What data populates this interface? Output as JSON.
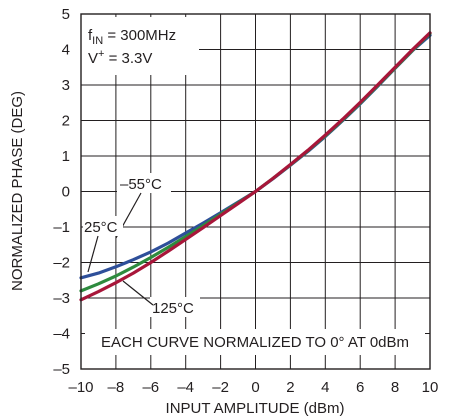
{
  "chart_data": {
    "type": "line",
    "xlabel": "INPUT AMPLITUDE (dBm)",
    "ylabel": "NORMALIZED PHASE (DEG)",
    "xlim": [
      -10,
      10
    ],
    "ylim": [
      -5,
      5
    ],
    "xticks": [
      -10,
      -8,
      -6,
      -4,
      -2,
      0,
      2,
      4,
      6,
      8,
      10
    ],
    "xtick_labels": [
      "–10",
      "–8",
      "–6",
      "–4",
      "–2",
      "0",
      "2",
      "4",
      "6",
      "8",
      "10"
    ],
    "yticks": [
      -5,
      -4,
      -3,
      -2,
      -1,
      0,
      1,
      2,
      3,
      4,
      5
    ],
    "ytick_labels": [
      "–5",
      "–4",
      "–3",
      "–2",
      "–1",
      "0",
      "1",
      "2",
      "3",
      "4",
      "5"
    ],
    "grid": true,
    "conditions": {
      "fin_prefix": "f",
      "fin_sub": "IN",
      "fin_value": " = 300MHz",
      "vplus_prefix": "V",
      "vplus_sup": "+",
      "vplus_value": " = 3.3V"
    },
    "note": "EACH CURVE NORMALIZED TO 0° AT 0dBm",
    "series": [
      {
        "name": "–55°C",
        "color": "#2e4f9a",
        "x": [
          -10,
          -9,
          -8,
          -7,
          -6,
          -5,
          -4,
          -3,
          -2,
          -1,
          0,
          1,
          2,
          3,
          4,
          5,
          6,
          7,
          8,
          9,
          10
        ],
        "y": [
          -2.43,
          -2.3,
          -2.12,
          -1.92,
          -1.7,
          -1.45,
          -1.17,
          -0.89,
          -0.6,
          -0.3,
          0,
          0.36,
          0.74,
          1.13,
          1.55,
          2.0,
          2.47,
          2.96,
          3.47,
          3.97,
          4.4
        ]
      },
      {
        "name": "25°C",
        "color": "#2e8b3e",
        "x": [
          -10,
          -9,
          -8,
          -7,
          -6,
          -5,
          -4,
          -3,
          -2,
          -1,
          0,
          1,
          2,
          3,
          4,
          5,
          6,
          7,
          8,
          9,
          10
        ],
        "y": [
          -2.8,
          -2.6,
          -2.38,
          -2.13,
          -1.86,
          -1.57,
          -1.27,
          -0.96,
          -0.64,
          -0.32,
          0,
          0.37,
          0.75,
          1.15,
          1.57,
          2.02,
          2.49,
          2.98,
          3.48,
          3.98,
          4.45
        ]
      },
      {
        "name": "125°C",
        "color": "#a8163a",
        "x": [
          -10,
          -9,
          -8,
          -7,
          -6,
          -5,
          -4,
          -3,
          -2,
          -1,
          0,
          1,
          2,
          3,
          4,
          5,
          6,
          7,
          8,
          9,
          10
        ],
        "y": [
          -3.05,
          -2.82,
          -2.57,
          -2.3,
          -2.0,
          -1.68,
          -1.35,
          -1.02,
          -0.68,
          -0.34,
          0,
          0.37,
          0.76,
          1.16,
          1.59,
          2.04,
          2.51,
          3.0,
          3.5,
          4.0,
          4.47
        ]
      }
    ],
    "labels": {
      "m55": "–55°C",
      "t25": "25°C",
      "t125": "125°C"
    }
  }
}
